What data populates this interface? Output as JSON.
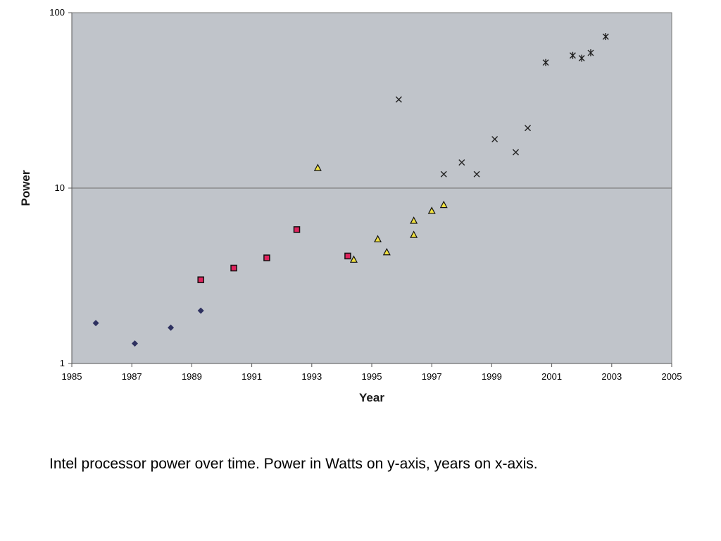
{
  "chart_data": {
    "type": "scatter",
    "xlabel": "Year",
    "ylabel": "Power",
    "xlim": [
      1985,
      2005
    ],
    "ylim": [
      1,
      100
    ],
    "y_scale": "log",
    "x_ticks": [
      "1985",
      "1987",
      "1989",
      "1991",
      "1993",
      "1995",
      "1997",
      "1999",
      "2001",
      "2003",
      "2005"
    ],
    "y_ticks": [
      "1",
      "10",
      "100"
    ],
    "plot_background": "#c0c4ca",
    "grid": "horizontal gridline at 10",
    "legend": "none",
    "series": [
      {
        "marker": "diamond",
        "color": "#2e3160",
        "points": [
          [
            1985.8,
            1.7
          ],
          [
            1987.1,
            1.3
          ],
          [
            1988.3,
            1.6
          ],
          [
            1989.3,
            2.0
          ]
        ]
      },
      {
        "marker": "square",
        "color": "#e0245e",
        "points": [
          [
            1989.3,
            3.0
          ],
          [
            1990.4,
            3.5
          ],
          [
            1991.5,
            4.0
          ],
          [
            1992.5,
            5.8
          ],
          [
            1994.2,
            4.1
          ]
        ]
      },
      {
        "marker": "triangle",
        "color": "#f0e040",
        "points": [
          [
            1993.2,
            13.0
          ],
          [
            1994.4,
            3.9
          ],
          [
            1995.2,
            5.1
          ],
          [
            1995.5,
            4.3
          ],
          [
            1996.4,
            6.5
          ],
          [
            1996.4,
            5.4
          ],
          [
            1997.0,
            7.4
          ],
          [
            1997.4,
            8.0
          ]
        ]
      },
      {
        "marker": "x",
        "color": "#222222",
        "points": [
          [
            1995.9,
            32.0
          ],
          [
            1997.4,
            12.0
          ],
          [
            1998.0,
            14.0
          ],
          [
            1998.5,
            12.0
          ],
          [
            1999.1,
            19.0
          ],
          [
            1999.8,
            16.0
          ],
          [
            2000.2,
            22.0
          ]
        ]
      },
      {
        "marker": "star",
        "color": "#222222",
        "points": [
          [
            2000.8,
            52.0
          ],
          [
            2001.7,
            57.0
          ],
          [
            2002.0,
            55.0
          ],
          [
            2002.3,
            59.0
          ],
          [
            2002.8,
            73.0
          ]
        ]
      }
    ]
  },
  "caption": "Intel processor power over time. Power in Watts on y-axis, years on x-axis."
}
